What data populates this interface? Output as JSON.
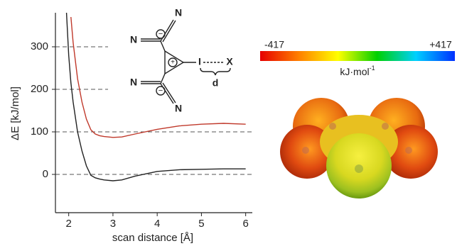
{
  "chart_data": {
    "type": "line",
    "xlabel": "scan distance [Å]",
    "ylabel": "ΔE [kJ/mol]",
    "x": [
      1.95,
      2.0,
      2.05,
      2.1,
      2.2,
      2.3,
      2.4,
      2.5,
      2.6,
      2.7,
      2.8,
      3.0,
      3.2,
      3.5,
      4.0,
      4.5,
      5.0,
      5.5,
      6.0
    ],
    "series": [
      {
        "color": "#222222",
        "values": [
          380,
          280,
          215,
          170,
          100,
          55,
          20,
          -2,
          -8,
          -11,
          -13,
          -15,
          -13,
          -4,
          7,
          11,
          12,
          13,
          13
        ]
      },
      {
        "color": "#c0392b",
        "values": [
          null,
          null,
          370,
          310,
          225,
          170,
          130,
          105,
          95,
          91,
          89,
          87,
          88,
          95,
          106,
          114,
          118,
          120,
          118
        ]
      }
    ],
    "xlim": [
      1.7,
      6.15
    ],
    "ylim": [
      -90,
      380
    ],
    "xticks": [
      2,
      3,
      4,
      5,
      6
    ],
    "yticks": [
      0,
      100,
      200,
      300
    ],
    "grid": true,
    "grid_style": "dashed"
  },
  "structure": {
    "atoms": [
      "N",
      "N",
      "N",
      "N",
      "I",
      "X"
    ],
    "charges": [
      "−",
      "−",
      "+"
    ],
    "distance": "d"
  },
  "colorbar": {
    "range": [
      {
        "value": -417,
        "label": "-417"
      },
      {
        "value": 417,
        "label": "+417"
      }
    ],
    "unit": "kJ·mol",
    "unit_sup": "-1",
    "colors": [
      "#e60000",
      "#ff8000",
      "#ffff00",
      "#00d000",
      "#00d0ff",
      "#0030ff"
    ]
  }
}
